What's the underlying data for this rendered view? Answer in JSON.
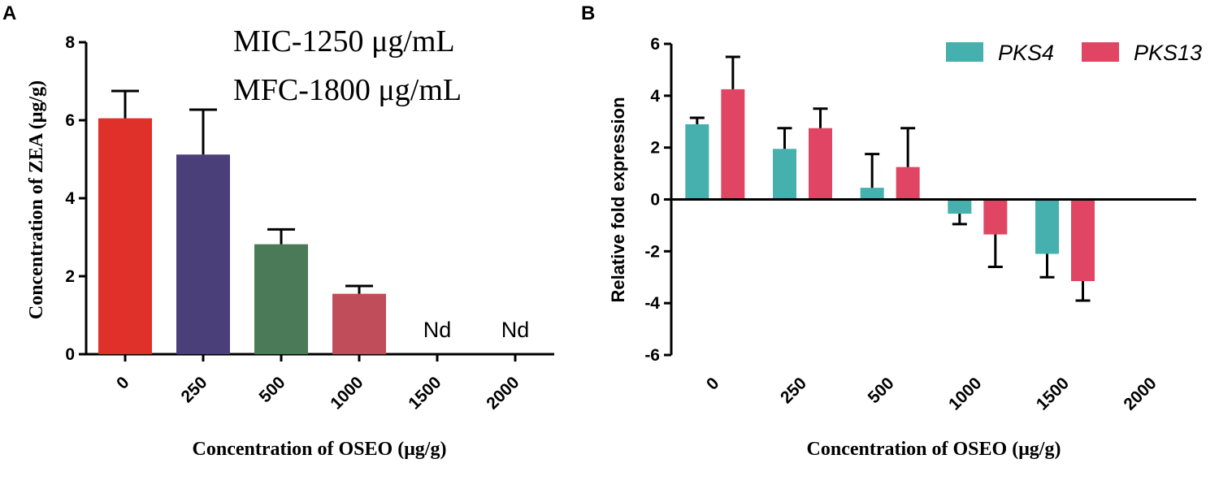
{
  "chart_data": [
    {
      "panel": "A",
      "type": "bar",
      "categories": [
        "0",
        "250",
        "500",
        "1000",
        "1500",
        "2000"
      ],
      "values": [
        6.05,
        5.12,
        2.82,
        1.55,
        null,
        null
      ],
      "errors": [
        0.7,
        1.15,
        0.38,
        0.2,
        null,
        null
      ],
      "colors": [
        "#e0302a",
        "#4b3f7a",
        "#4a7a57",
        "#c04e5a"
      ],
      "bar_labels": [
        "",
        "",
        "",
        "",
        "Nd",
        "Nd"
      ],
      "annotations": [
        "MIC-1250 μg/mL",
        "MFC-1800 μg/mL"
      ],
      "ylabel": "Concentration of ZEA (μg/g)",
      "xlabel": "Concentration of OSEO (μg/g)",
      "ylim": [
        0,
        8
      ],
      "yticks": [
        "0",
        "2",
        "4",
        "6",
        "8"
      ]
    },
    {
      "panel": "B",
      "type": "bar",
      "categories": [
        "0",
        "250",
        "500",
        "1000",
        "1500",
        "2000"
      ],
      "series": [
        {
          "name": "PKS4",
          "color": "#45b0ad",
          "values": [
            2.9,
            1.95,
            0.45,
            -0.55,
            -2.1,
            null
          ],
          "errors": [
            0.25,
            0.8,
            1.3,
            0.4,
            0.9,
            null
          ]
        },
        {
          "name": "PKS13",
          "color": "#e04663",
          "values": [
            4.25,
            2.75,
            1.25,
            -1.35,
            -3.15,
            null
          ],
          "errors": [
            1.25,
            0.75,
            1.5,
            1.25,
            0.75,
            null
          ]
        }
      ],
      "ylabel": "Relative fold expression",
      "xlabel": "Concentration of OSEO (μg/g)",
      "ylim": [
        -6,
        6
      ],
      "yticks": [
        "-6",
        "-4",
        "-2",
        "0",
        "2",
        "4",
        "6"
      ],
      "legend_position": "top-right"
    }
  ]
}
